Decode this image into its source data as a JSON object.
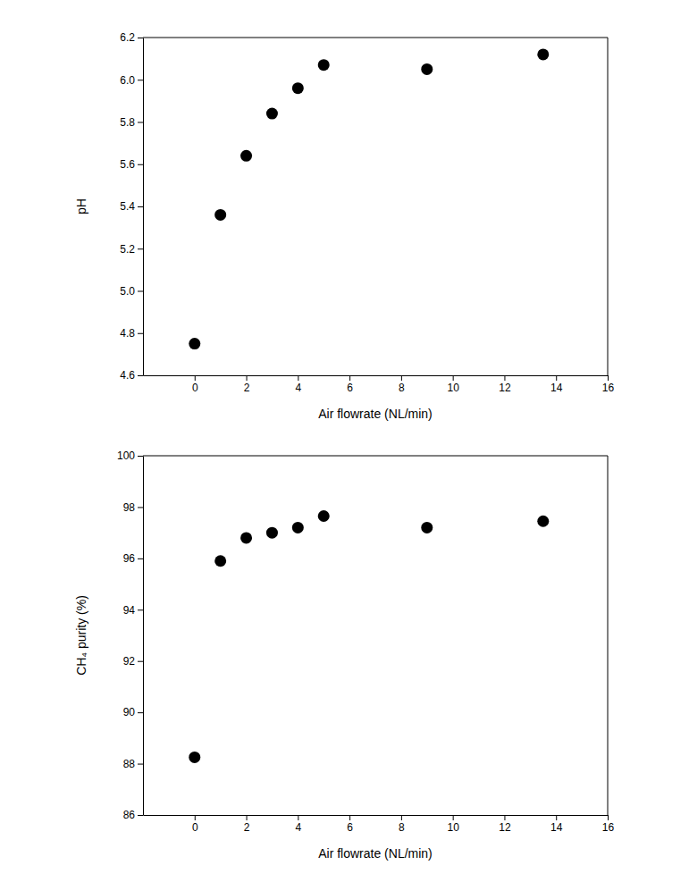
{
  "chart_data": [
    {
      "type": "scatter",
      "x_label": "Air flowrate (NL/min)",
      "y_label": "pH",
      "x": [
        0,
        1,
        2,
        3,
        4,
        5,
        9,
        13.5
      ],
      "values": [
        4.75,
        5.36,
        5.64,
        5.84,
        5.96,
        6.07,
        6.05,
        6.12
      ],
      "color": "#000000",
      "marker": "circle",
      "xlim": [
        -2,
        16
      ],
      "xticks": [
        0,
        2,
        4,
        6,
        8,
        10,
        12,
        14,
        16
      ],
      "ylim": [
        4.6,
        6.2
      ],
      "yticks": [
        4.6,
        4.8,
        {
          "value": 5,
          "label": "5.0"
        },
        5.2,
        5.4,
        5.6,
        5.8,
        {
          "value": 6,
          "label": "6.0"
        },
        6.2
      ],
      "grid": false
    },
    {
      "type": "scatter",
      "x_label": "Air flowrate (NL/min)",
      "y_label": "CH₄ purity (%)",
      "x": [
        0,
        1,
        2,
        3,
        4,
        5,
        9,
        13.5
      ],
      "values": [
        88.25,
        95.9,
        96.8,
        97.0,
        97.2,
        97.65,
        97.2,
        97.45
      ],
      "color": "#000000",
      "marker": "circle",
      "xlim": [
        -2,
        16
      ],
      "xticks": [
        0,
        2,
        4,
        6,
        8,
        10,
        12,
        14,
        16
      ],
      "ylim": [
        86,
        100
      ],
      "yticks": [
        86,
        88,
        90,
        92,
        94,
        96,
        98,
        100
      ],
      "grid": false
    }
  ]
}
